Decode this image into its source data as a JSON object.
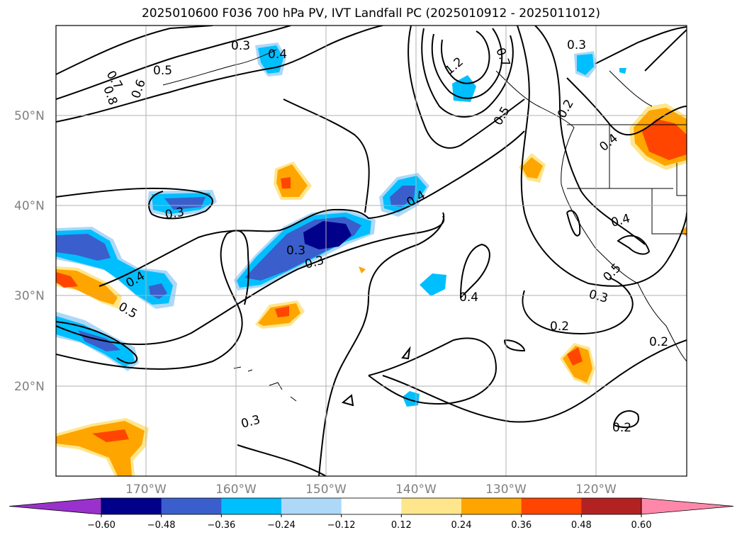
{
  "title": "2025010600 F036 700 hPa PV, IVT Landfall PC (2025010912 - 2025011012)",
  "map": {
    "projection": "PlateCarree",
    "lon_range": [
      -180,
      -110
    ],
    "lat_range": [
      10,
      60
    ],
    "gridlines": true,
    "lat_ticks": [
      "20°N",
      "30°N",
      "40°N",
      "50°N"
    ],
    "lon_ticks": [
      "170°W",
      "160°W",
      "150°W",
      "140°W",
      "130°W",
      "120°W"
    ]
  },
  "contour_labels": [
    "0.5",
    "0.7",
    "0.8",
    "0.6",
    "0.4",
    "0.3",
    "0.3",
    "0.3",
    "0.4",
    "0.5",
    "0.3",
    "0.4",
    "0.2",
    "0.2",
    "0.2",
    "0.2",
    "0.4",
    "0.3",
    "0.5",
    "0.4",
    "0.3",
    "1.2",
    "0.5",
    "0.4",
    "0.3",
    "0.7"
  ],
  "colorbar": {
    "ticks": [
      "−0.60",
      "−0.48",
      "−0.36",
      "−0.24",
      "−0.12",
      "0.12",
      "0.24",
      "0.36",
      "0.48",
      "0.60"
    ],
    "colors": [
      "#9932cc",
      "#00008b",
      "#3a5fcd",
      "#00bfff",
      "#add8f7",
      "#ffffff",
      "#ffe68c",
      "#ffa500",
      "#ff4500",
      "#b22222",
      "#ff88aa"
    ],
    "extend": "both"
  }
}
